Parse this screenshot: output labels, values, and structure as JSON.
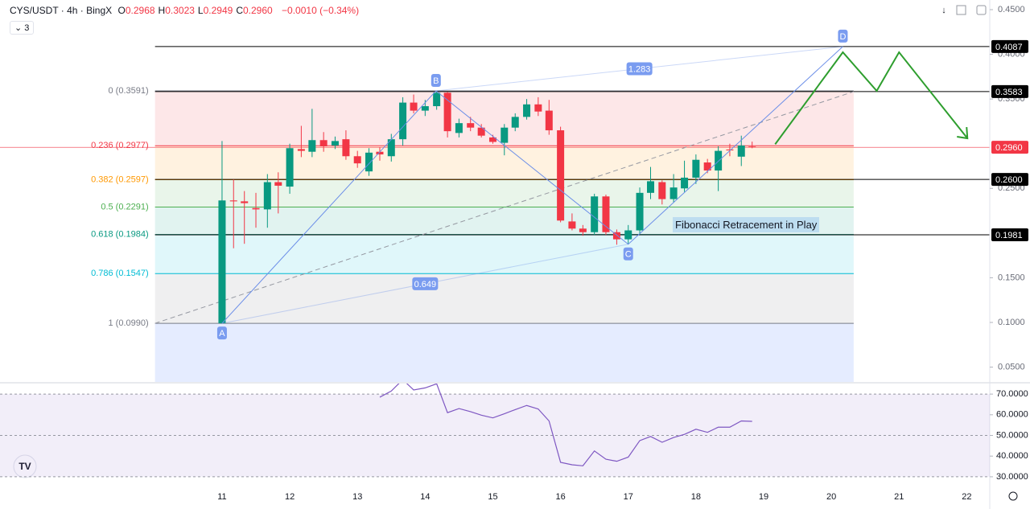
{
  "header": {
    "symbol": "CYS/USDT · 4h · BingX",
    "ohlc": [
      {
        "key": "O",
        "value": "0.2968"
      },
      {
        "key": "H",
        "value": "0.3023"
      },
      {
        "key": "L",
        "value": "0.2949"
      },
      {
        "key": "C",
        "value": "0.2960"
      }
    ],
    "change": "−0.0010 (−0.34%)",
    "indicator_count": "3"
  },
  "chart_data": [
    {
      "type": "candlestick",
      "x": [
        11,
        11.17,
        11.33,
        11.5,
        11.67,
        11.83,
        12,
        12.17,
        12.33,
        12.5,
        12.67,
        12.83,
        13,
        13.17,
        13.33,
        13.5,
        13.67,
        13.83,
        14,
        14.17,
        14.33,
        14.5,
        14.67,
        14.83,
        15,
        15.17,
        15.33,
        15.5,
        15.67,
        15.83,
        16,
        16.17,
        16.33,
        16.5,
        16.67,
        16.83,
        17,
        17.17,
        17.33,
        17.5,
        17.67,
        17.83,
        18,
        18.17,
        18.33,
        18.5,
        18.67,
        18.83
      ],
      "open": [
        0.099,
        0.2365,
        0.2355,
        0.228,
        0.2265,
        0.257,
        0.252,
        0.294,
        0.291,
        0.304,
        0.298,
        0.305,
        0.286,
        0.269,
        0.291,
        0.286,
        0.305,
        0.346,
        0.337,
        0.342,
        0.357,
        0.312,
        0.323,
        0.318,
        0.307,
        0.301,
        0.318,
        0.33,
        0.344,
        0.337,
        0.315,
        0.213,
        0.205,
        0.201,
        0.241,
        0.201,
        0.193,
        0.203,
        0.245,
        0.257,
        0.238,
        0.25,
        0.262,
        0.279,
        0.27,
        0.2935,
        0.2855,
        0.2968
      ],
      "high": [
        0.303,
        0.26,
        0.247,
        0.245,
        0.266,
        0.268,
        0.3,
        0.32,
        0.339,
        0.313,
        0.308,
        0.315,
        0.292,
        0.295,
        0.296,
        0.311,
        0.352,
        0.355,
        0.349,
        0.3591,
        0.358,
        0.328,
        0.33,
        0.322,
        0.31,
        0.322,
        0.334,
        0.35,
        0.352,
        0.349,
        0.319,
        0.222,
        0.209,
        0.244,
        0.243,
        0.204,
        0.209,
        0.251,
        0.274,
        0.259,
        0.266,
        0.281,
        0.288,
        0.283,
        0.297,
        0.3,
        0.309,
        0.3023
      ],
      "low": [
        0.099,
        0.183,
        0.188,
        0.206,
        0.206,
        0.222,
        0.244,
        0.285,
        0.285,
        0.291,
        0.294,
        0.282,
        0.273,
        0.264,
        0.281,
        0.28,
        0.298,
        0.334,
        0.331,
        0.338,
        0.307,
        0.307,
        0.314,
        0.307,
        0.3,
        0.287,
        0.314,
        0.327,
        0.331,
        0.31,
        0.212,
        0.203,
        0.197,
        0.198,
        0.198,
        0.187,
        0.188,
        0.199,
        0.238,
        0.232,
        0.234,
        0.246,
        0.255,
        0.267,
        0.247,
        0.286,
        0.275,
        0.2949
      ],
      "close": [
        0.2365,
        0.2355,
        0.2335,
        0.2265,
        0.257,
        0.253,
        0.295,
        0.292,
        0.304,
        0.297,
        0.303,
        0.286,
        0.278,
        0.29,
        0.288,
        0.305,
        0.346,
        0.337,
        0.342,
        0.357,
        0.314,
        0.323,
        0.318,
        0.309,
        0.302,
        0.318,
        0.33,
        0.344,
        0.336,
        0.315,
        0.214,
        0.205,
        0.201,
        0.241,
        0.201,
        0.193,
        0.203,
        0.245,
        0.258,
        0.238,
        0.251,
        0.262,
        0.282,
        0.27,
        0.292,
        0.2925,
        0.298,
        0.296
      ],
      "up_color": "#089981",
      "down_color": "#f23645",
      "xlim": [
        7.72,
        22.34
      ],
      "xticks": [
        11,
        12,
        13,
        14,
        15,
        16,
        17,
        18,
        19,
        20,
        21,
        22
      ],
      "ylim": [
        0.0334,
        0.4608
      ],
      "yticks": [
        {
          "value": 0.45,
          "label": "0.4500"
        },
        {
          "value": 0.4,
          "label": "0.4000"
        },
        {
          "value": 0.35,
          "label": "0.3500"
        },
        {
          "value": 0.25,
          "label": "0.2500"
        },
        {
          "value": 0.15,
          "label": "0.1500"
        },
        {
          "value": 0.1,
          "label": "0.1000"
        },
        {
          "value": 0.05,
          "label": "0.0500"
        }
      ],
      "price_tags": [
        {
          "value": 0.4087,
          "label": "0.4087",
          "color": "#000000"
        },
        {
          "value": 0.3583,
          "label": "0.3583",
          "color": "#000000"
        },
        {
          "value": 0.296,
          "label": "0.2960",
          "color": "#f23645"
        },
        {
          "value": 0.26,
          "label": "0.2600",
          "color": "#000000"
        },
        {
          "value": 0.1981,
          "label": "0.1981",
          "color": "#000000"
        }
      ],
      "fib_range": [
        10.01,
        20.33
      ],
      "fib_levels": [
        {
          "label": "0 (0.3591)",
          "price": 0.3591,
          "color": "#787b86",
          "fill": "rgba(242,54,69,0.12)"
        },
        {
          "label": "0.236 (0.2977)",
          "price": 0.2977,
          "color": "#f23645",
          "fill": "rgba(255,152,0,0.12)"
        },
        {
          "label": "0.382 (0.2597)",
          "price": 0.2597,
          "color": "#ff9800",
          "fill": "rgba(76,175,80,0.12)"
        },
        {
          "label": "0.5 (0.2291)",
          "price": 0.2291,
          "color": "#4caf50",
          "fill": "rgba(8,153,129,0.12)"
        },
        {
          "label": "0.618 (0.1984)",
          "price": 0.1984,
          "color": "#089981",
          "fill": "rgba(0,188,212,0.12)"
        },
        {
          "label": "0.786 (0.1547)",
          "price": 0.1547,
          "color": "#00bcd4",
          "fill": "rgba(120,123,134,0.12)"
        },
        {
          "label": "1 (0.0990)",
          "price": 0.099,
          "color": "#787b86",
          "fill": "rgba(41,98,255,0.12)"
        }
      ],
      "trend_line": {
        "x": [
          10.01,
          20.33
        ],
        "y": [
          0.099,
          0.3583
        ],
        "color": "#9598a1"
      },
      "points": [
        {
          "label": "A",
          "x": 11,
          "y": 0.099,
          "side": "below"
        },
        {
          "label": "B",
          "x": 14.16,
          "y": 0.3591,
          "side": "above"
        },
        {
          "label": "C",
          "x": 17,
          "y": 0.1875,
          "side": "below"
        },
        {
          "label": "D",
          "x": 20.17,
          "y": 0.4087,
          "side": "above"
        }
      ],
      "pattern_color": "#6b8ee8",
      "ratios": [
        {
          "label": 0.649,
          "from": 0,
          "to": 2
        },
        {
          "label": 1.283,
          "from": 1,
          "to": 3
        }
      ],
      "projection": {
        "x": [
          19.17,
          20.17,
          20.67,
          21.0,
          22.01
        ],
        "y": [
          0.2994,
          0.4023,
          0.3591,
          0.4023,
          0.306
        ],
        "color": "#2e9e2e"
      },
      "annotation": "Fibonacci Retracement in Play"
    },
    {
      "type": "line",
      "x": [
        13.33,
        13.5,
        13.67,
        13.83,
        14,
        14.17,
        14.33,
        14.5,
        14.67,
        14.83,
        15,
        15.17,
        15.33,
        15.5,
        15.67,
        15.83,
        16,
        16.17,
        16.33,
        16.5,
        16.67,
        16.83,
        17,
        17.17,
        17.33,
        17.5,
        17.67,
        17.83,
        18,
        18.17,
        18.33,
        18.5,
        18.67,
        18.83
      ],
      "values": [
        68.5,
        71.5,
        77,
        72,
        73,
        75,
        61,
        63,
        61.5,
        59.8,
        58.5,
        60.5,
        62.5,
        64.5,
        62.8,
        57,
        37,
        35.8,
        35.3,
        42.5,
        38.5,
        37.5,
        39.5,
        47.5,
        49.5,
        46.7,
        49,
        50.5,
        53,
        51.5,
        54,
        54,
        57,
        56.8
      ],
      "color": "#7e57c2",
      "band": [
        30,
        70
      ],
      "band_fill": "rgba(126,87,194,0.1)",
      "ylim": [
        25.3,
        75.1
      ],
      "yticks": [
        {
          "value": 70,
          "label": "70.0000"
        },
        {
          "value": 60,
          "label": "60.0000"
        },
        {
          "value": 50,
          "label": "50.0000"
        },
        {
          "value": 40,
          "label": "40.0000"
        },
        {
          "value": 30,
          "label": "30.0000"
        }
      ],
      "dashed_levels": [
        70,
        50,
        30
      ]
    }
  ]
}
